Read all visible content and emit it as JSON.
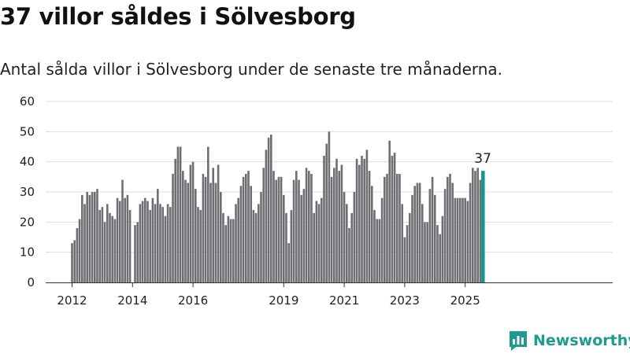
{
  "title": "37 villor såldes i Sölvesborg",
  "subtitle": "Antal sålda villor i Sölvesborg under de senaste tre månaderna.",
  "brand": "Newsworthy",
  "colors": {
    "bar": "#6f6e73",
    "highlight": "#16958a",
    "grid": "#dddddd",
    "axis": "#333333",
    "brand": "#1f9a8f"
  },
  "chart_data": {
    "type": "bar",
    "title": "37 villor såldes i Sölvesborg",
    "subtitle": "Antal sålda villor i Sölvesborg under de senaste tre månaderna.",
    "xlabel": "",
    "ylabel": "",
    "ylim": [
      0,
      60
    ],
    "yticks": [
      "0",
      "10",
      "20",
      "30",
      "40",
      "50",
      "60"
    ],
    "xticks": [
      "2012",
      "2014",
      "2016",
      "2019",
      "2021",
      "2023",
      "2025"
    ],
    "grid": true,
    "values": [
      13,
      14,
      18,
      21,
      29,
      26,
      30,
      29,
      30,
      30,
      31,
      24,
      25,
      20,
      26,
      23,
      22,
      21,
      28,
      27,
      34,
      28,
      29,
      24,
      null,
      19,
      20,
      26,
      27,
      28,
      27,
      24,
      28,
      26,
      31,
      26,
      25,
      22,
      26,
      25,
      36,
      41,
      45,
      45,
      37,
      34,
      33,
      39,
      40,
      31,
      25,
      24,
      36,
      35,
      45,
      33,
      38,
      33,
      39,
      30,
      23,
      19,
      22,
      21,
      21,
      26,
      28,
      32,
      35,
      36,
      37,
      32,
      24,
      23,
      26,
      30,
      38,
      44,
      48,
      49,
      37,
      34,
      35,
      35,
      29,
      23,
      13,
      24,
      34,
      37,
      34,
      29,
      31,
      38,
      37,
      36,
      23,
      27,
      26,
      28,
      42,
      46,
      50,
      35,
      38,
      41,
      37,
      39,
      30,
      26,
      18,
      23,
      30,
      41,
      39,
      42,
      41,
      44,
      37,
      32,
      24,
      21,
      21,
      28,
      35,
      36,
      47,
      42,
      43,
      36,
      36,
      26,
      15,
      19,
      23,
      29,
      32,
      33,
      33,
      26,
      20,
      20,
      31,
      35,
      29,
      19,
      16,
      22,
      31,
      35,
      36,
      33,
      28,
      28,
      28,
      28,
      28,
      27,
      33,
      38,
      37,
      38,
      34,
      37
    ],
    "highlight_last": true,
    "annotation": "37"
  }
}
